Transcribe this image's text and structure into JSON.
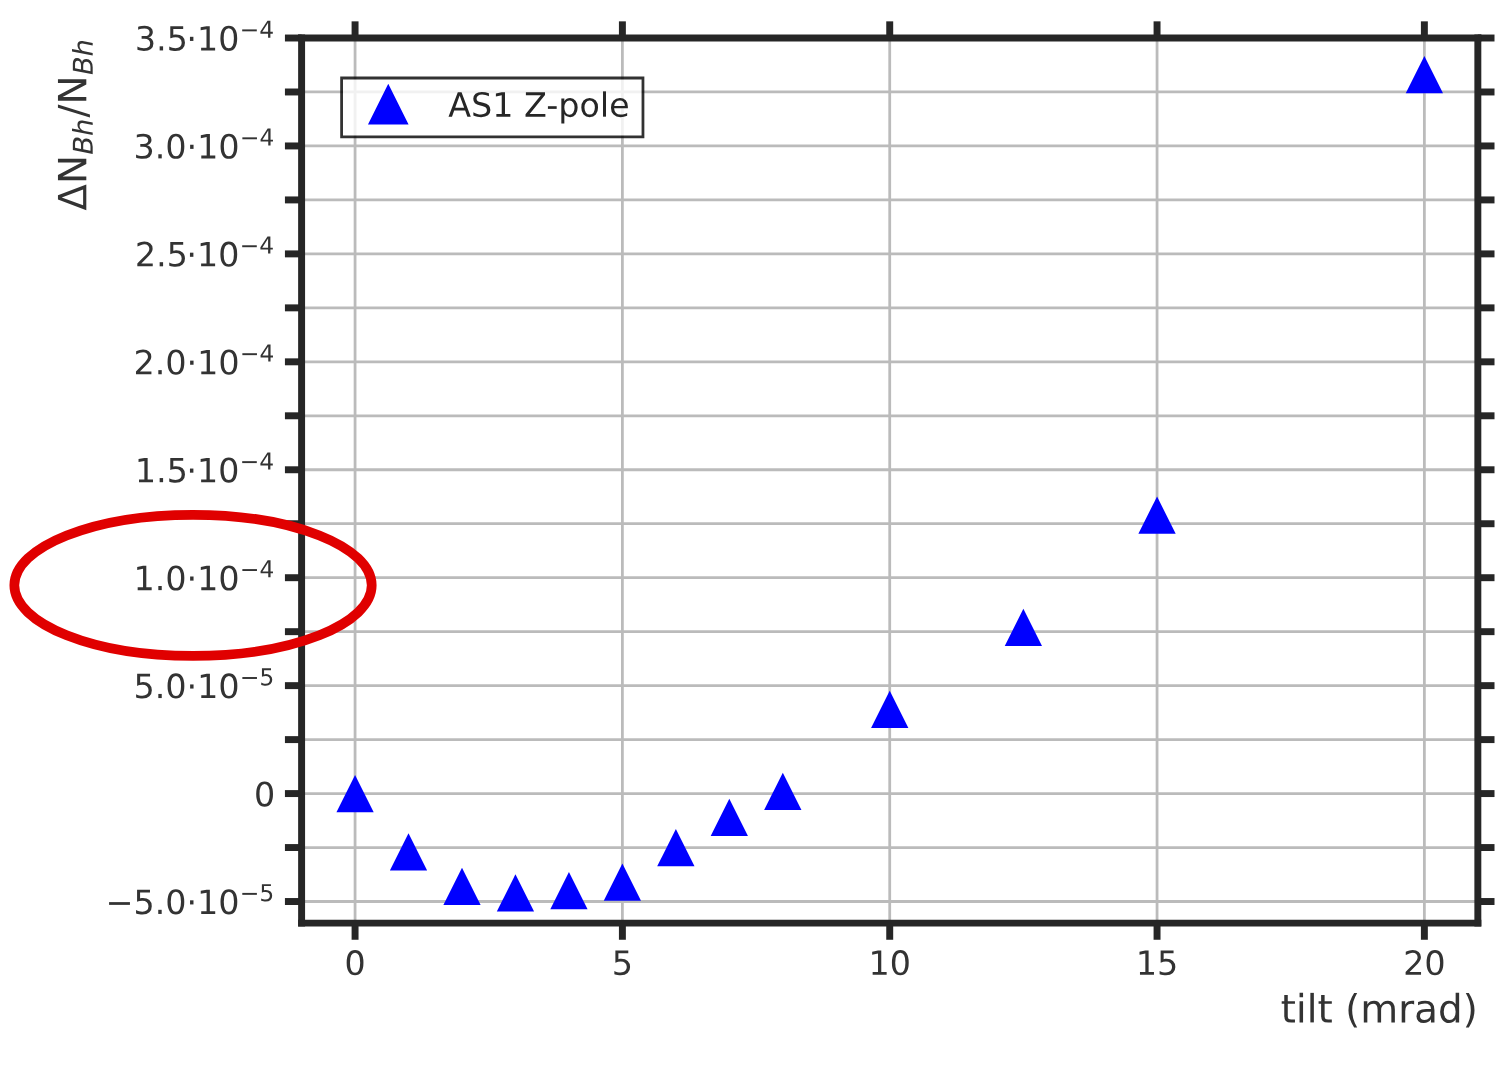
{
  "chart_data": {
    "type": "scatter",
    "xlabel": "tilt (mrad)",
    "ylabel": "ΔN$_{Bh}$/N$_{Bh}$",
    "series": [
      {
        "name": "AS1 Z-pole",
        "color": "#0000ff",
        "x": [
          0,
          1,
          2,
          3,
          4,
          5,
          6,
          7,
          8,
          10,
          12.5,
          15,
          20
        ],
        "values": [
          0,
          -2.7e-05,
          -4.3e-05,
          -4.6e-05,
          -4.5e-05,
          -4.1e-05,
          -2.5e-05,
          -1.1e-05,
          1e-06,
          3.9e-05,
          7.7e-05,
          0.000129,
          0.000333
        ]
      }
    ],
    "marker": "triangle",
    "legend": "top left",
    "grid": true,
    "xlim": [
      -1,
      21
    ],
    "xticks": [
      0,
      5,
      10,
      15,
      20
    ],
    "ylim": [
      -6e-05,
      0.00035
    ],
    "yticks": [
      {
        "value": -5e-05,
        "label": "−5.0·10$^{−5}$"
      },
      {
        "value": -2.5e-05,
        "label": null
      },
      {
        "value": 0,
        "label": "0"
      },
      {
        "value": 2.5e-05,
        "label": null
      },
      {
        "value": 5e-05,
        "label": "5.0·10$^{−5}$"
      },
      {
        "value": 7.5e-05,
        "label": null
      },
      {
        "value": 0.0001,
        "label": "1.0·10$^{−4}$"
      },
      {
        "value": 0.000125,
        "label": null
      },
      {
        "value": 0.00015,
        "label": "1.5·10$^{−4}$"
      },
      {
        "value": 0.000175,
        "label": null
      },
      {
        "value": 0.0002,
        "label": "2.0·10$^{−4}$"
      },
      {
        "value": 0.000225,
        "label": null
      },
      {
        "value": 0.00025,
        "label": "2.5·10$^{−4}$"
      },
      {
        "value": 0.000275,
        "label": null
      },
      {
        "value": 0.0003,
        "label": "3.0·10$^{−4}$"
      },
      {
        "value": 0.000325,
        "label": null
      },
      {
        "value": 0.00035,
        "label": "3.5·10$^{−4}$"
      }
    ]
  }
}
